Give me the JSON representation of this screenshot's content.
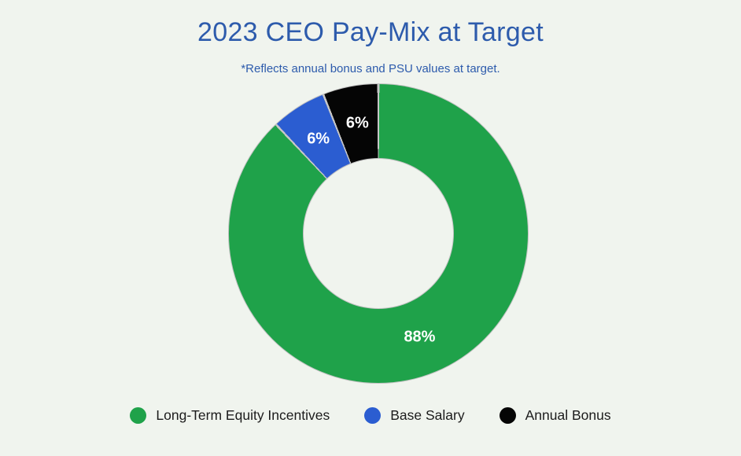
{
  "colors": {
    "background": "#f0f4ee",
    "title_text": "#2d5bac",
    "data_label_text": "#ffffff",
    "legend_text": "#1c1c1c"
  },
  "chart_data": {
    "type": "pie",
    "subtype": "donut",
    "title": "2023 CEO Pay-Mix at Target",
    "subtitle": "*Reflects annual bonus and PSU values at target.",
    "unit": "%",
    "start_angle_deg": 0,
    "direction": "clockwise",
    "hole_ratio": 0.5,
    "legend_position": "bottom",
    "series": [
      {
        "name": "Long-Term Equity Incentives",
        "value": 88,
        "data_label": "88%",
        "color": "#1fa24a"
      },
      {
        "name": "Base Salary",
        "value": 6,
        "data_label": "6%",
        "color": "#2b5dd1"
      },
      {
        "name": "Annual Bonus",
        "value": 6,
        "data_label": "6%",
        "color": "#050505"
      }
    ]
  }
}
